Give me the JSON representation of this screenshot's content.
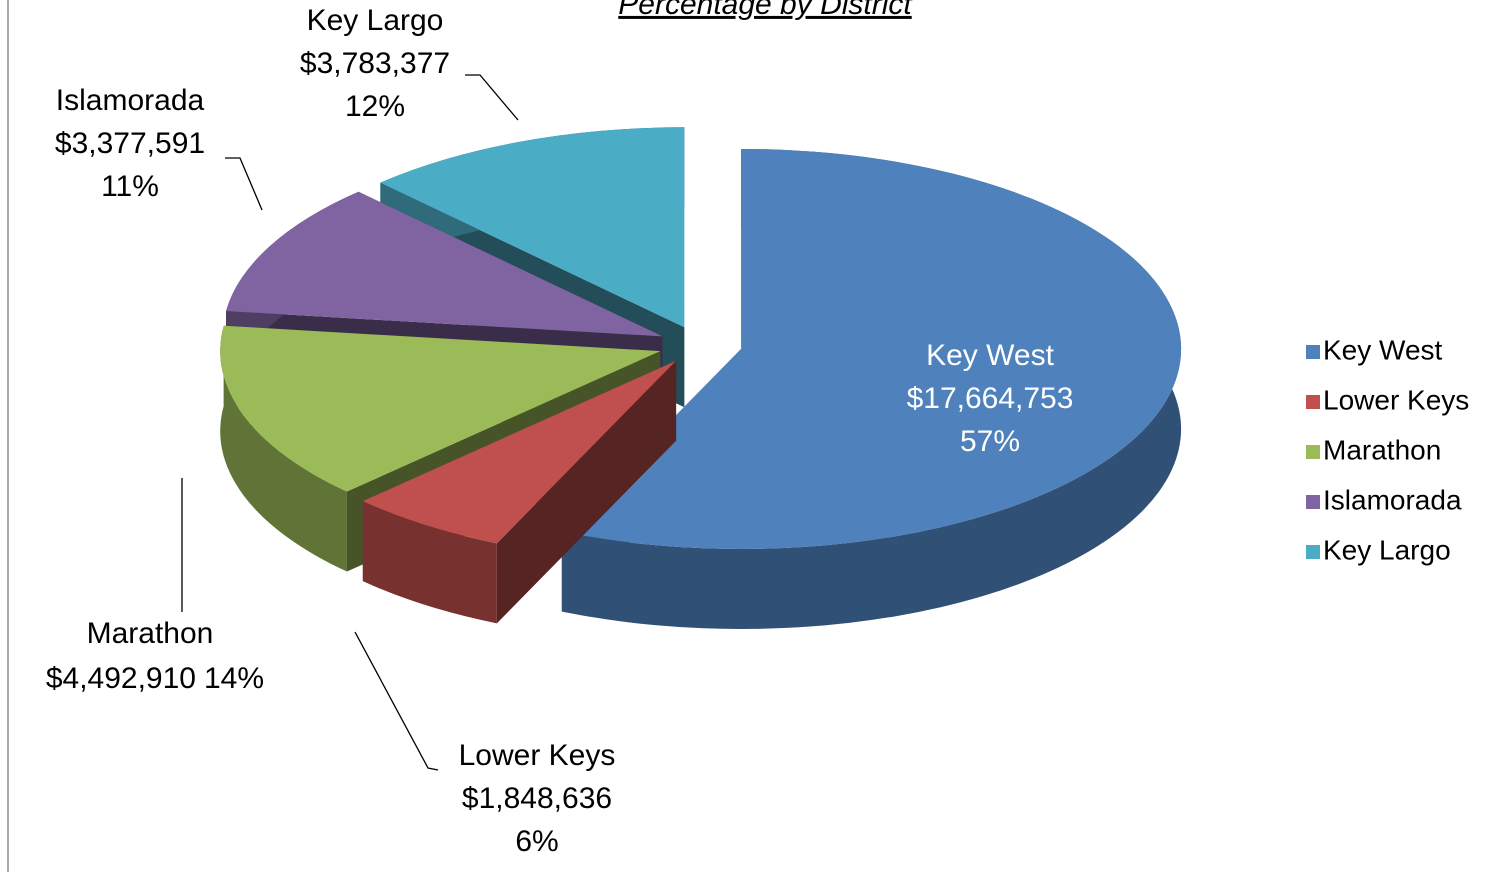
{
  "chart_data": {
    "type": "pie3d",
    "title": "Percentage by District",
    "categories": [
      "Key West",
      "Lower Keys",
      "Marathon",
      "Islamorada",
      "Key Largo"
    ],
    "values": [
      17664753,
      1848636,
      4492910,
      3377591,
      3783377
    ],
    "value_labels": [
      "$17,664,753",
      "$1,848,636",
      "$4,492,910",
      "$3,377,591",
      "$3,783,377"
    ],
    "percentages": [
      57,
      6,
      14,
      11,
      12
    ],
    "percentage_labels": [
      "57%",
      "6%",
      "14%",
      "11%",
      "12%"
    ],
    "colors": [
      "#4f81bd",
      "#c0504d",
      "#9bbb59",
      "#8064a2",
      "#4bacc6"
    ],
    "legend": "right"
  }
}
